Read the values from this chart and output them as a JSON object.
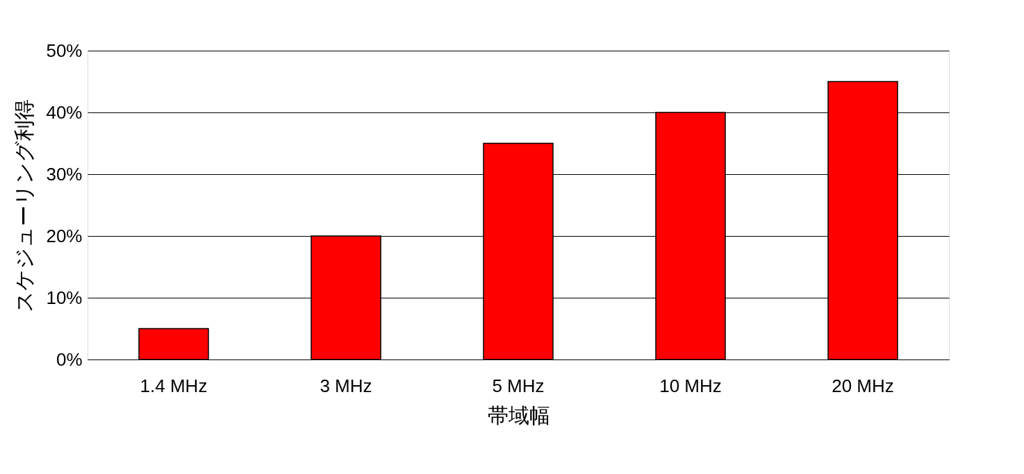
{
  "chart_data": {
    "type": "bar",
    "xlabel": "帯域幅",
    "ylabel": "スケジューリング利得",
    "categories": [
      "1.4 MHz",
      "3 MHz",
      "5 MHz",
      "10 MHz",
      "20 MHz"
    ],
    "values": [
      5,
      20,
      35,
      40,
      45
    ],
    "color": "#ff0000",
    "ylim": [
      0,
      50
    ],
    "yticks": [
      {
        "value": 0,
        "label": "0%"
      },
      {
        "value": 10,
        "label": "10%"
      },
      {
        "value": 20,
        "label": "20%"
      },
      {
        "value": 30,
        "label": "30%"
      },
      {
        "value": 40,
        "label": "40%"
      },
      {
        "value": 50,
        "label": "50%"
      }
    ],
    "grid": "y"
  }
}
